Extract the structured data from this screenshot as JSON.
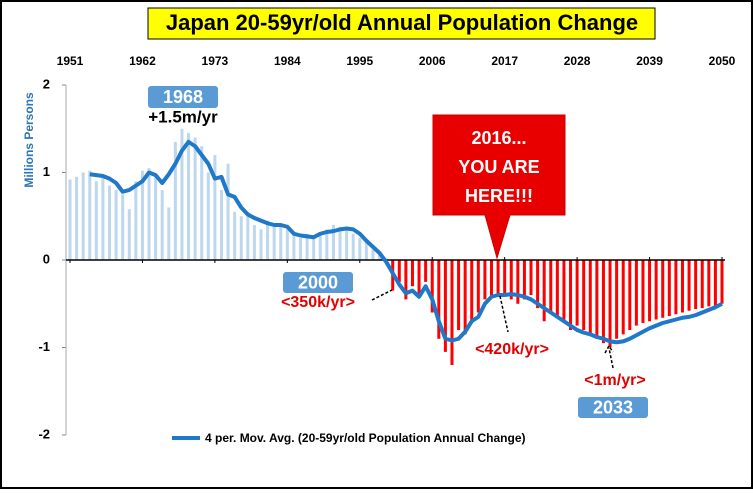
{
  "chart_data": {
    "type": "bar",
    "title": "Japan 20-59yr/old Annual Population Change",
    "ylabel": "Millions Persons",
    "x": [
      1951,
      1952,
      1953,
      1954,
      1955,
      1956,
      1957,
      1958,
      1959,
      1960,
      1961,
      1962,
      1963,
      1964,
      1965,
      1966,
      1967,
      1968,
      1969,
      1970,
      1971,
      1972,
      1973,
      1974,
      1975,
      1976,
      1977,
      1978,
      1979,
      1980,
      1981,
      1982,
      1983,
      1984,
      1985,
      1986,
      1987,
      1988,
      1989,
      1990,
      1991,
      1992,
      1993,
      1994,
      1995,
      1996,
      1997,
      1998,
      1999,
      2000,
      2001,
      2002,
      2003,
      2004,
      2005,
      2006,
      2007,
      2008,
      2009,
      2010,
      2011,
      2012,
      2013,
      2014,
      2015,
      2016,
      2017,
      2018,
      2019,
      2020,
      2021,
      2022,
      2023,
      2024,
      2025,
      2026,
      2027,
      2028,
      2029,
      2030,
      2031,
      2032,
      2033,
      2034,
      2035,
      2036,
      2037,
      2038,
      2039,
      2040,
      2041,
      2042,
      2043,
      2044,
      2045,
      2046,
      2047,
      2048,
      2049,
      2050
    ],
    "xlim": [
      1951,
      2050
    ],
    "xticks": [
      1951,
      1962,
      1973,
      1984,
      1995,
      2006,
      2017,
      2028,
      2039,
      2050
    ],
    "ylim": [
      -2,
      2
    ],
    "yticks": [
      -2,
      -1,
      0,
      1,
      2
    ],
    "series": [
      {
        "type": "bar",
        "color": "#bdd7ee",
        "negative_color": "#ff0000",
        "values": [
          0.92,
          0.95,
          1.0,
          1.02,
          0.9,
          0.95,
          0.85,
          0.8,
          0.75,
          0.58,
          0.9,
          1.02,
          1.05,
          0.98,
          0.8,
          0.6,
          1.35,
          1.5,
          1.45,
          1.4,
          1.3,
          1.0,
          1.2,
          0.8,
          1.1,
          0.55,
          0.5,
          0.55,
          0.4,
          0.35,
          0.45,
          0.4,
          0.38,
          0.35,
          0.3,
          0.25,
          0.3,
          0.28,
          0.32,
          0.35,
          0.4,
          0.38,
          0.35,
          0.3,
          0.25,
          0.2,
          0.12,
          0.08,
          0.02,
          -0.35,
          -0.25,
          -0.45,
          -0.3,
          -0.4,
          -0.25,
          -0.6,
          -0.9,
          -1.05,
          -1.2,
          -0.8,
          -0.85,
          -0.7,
          -0.6,
          -0.45,
          -0.42,
          -0.42,
          -0.4,
          -0.45,
          -0.5,
          -0.45,
          -0.4,
          -0.55,
          -0.7,
          -0.6,
          -0.65,
          -0.7,
          -0.8,
          -0.75,
          -0.8,
          -0.85,
          -0.9,
          -0.95,
          -1.0,
          -0.9,
          -0.85,
          -0.8,
          -0.75,
          -0.72,
          -0.7,
          -0.68,
          -0.66,
          -0.64,
          -0.62,
          -0.6,
          -0.58,
          -0.56,
          -0.55,
          -0.53,
          -0.52,
          -0.5
        ]
      },
      {
        "type": "line",
        "name": "4 per. Mov. Avg. (20-59yr/old Population Annual Change)",
        "color": "#1f78c8",
        "values": [
          null,
          null,
          null,
          0.98,
          0.97,
          0.96,
          0.93,
          0.88,
          0.78,
          0.8,
          0.85,
          0.9,
          1.0,
          0.97,
          0.88,
          0.98,
          1.1,
          1.25,
          1.35,
          1.3,
          1.2,
          1.1,
          0.93,
          0.95,
          0.75,
          0.72,
          0.6,
          0.52,
          0.48,
          0.45,
          0.42,
          0.4,
          0.4,
          0.38,
          0.3,
          0.28,
          0.27,
          0.26,
          0.3,
          0.32,
          0.33,
          0.35,
          0.36,
          0.35,
          0.3,
          0.22,
          0.15,
          0.08,
          -0.02,
          -0.15,
          -0.28,
          -0.38,
          -0.35,
          -0.42,
          -0.3,
          -0.45,
          -0.7,
          -0.9,
          -0.92,
          -0.9,
          -0.82,
          -0.7,
          -0.65,
          -0.5,
          -0.42,
          -0.4,
          -0.4,
          -0.39,
          -0.4,
          -0.42,
          -0.45,
          -0.5,
          -0.55,
          -0.6,
          -0.65,
          -0.7,
          -0.75,
          -0.8,
          -0.83,
          -0.85,
          -0.88,
          -0.9,
          -0.93,
          -0.94,
          -0.93,
          -0.9,
          -0.86,
          -0.82,
          -0.78,
          -0.75,
          -0.72,
          -0.7,
          -0.68,
          -0.66,
          -0.65,
          -0.63,
          -0.6,
          -0.57,
          -0.54,
          -0.5
        ]
      }
    ],
    "annotations": [
      {
        "text": "1968"
      },
      {
        "text": "+1.5m/yr"
      },
      {
        "lines": [
          "2016...",
          "YOU ARE",
          "HERE!!!"
        ]
      },
      {
        "text": "2000"
      },
      {
        "text": "<350k/yr>"
      },
      {
        "text": "<420k/yr>"
      },
      {
        "text": "<1m/yr>"
      },
      {
        "text": "2033"
      }
    ]
  }
}
